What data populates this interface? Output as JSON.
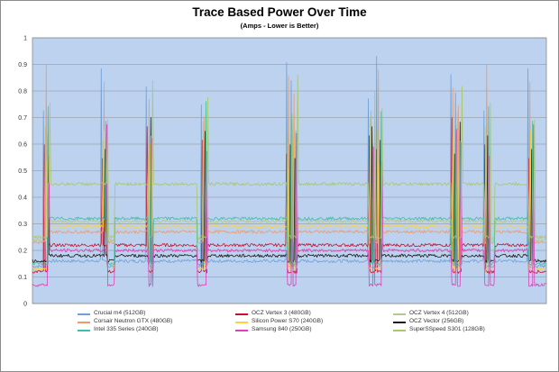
{
  "chart_data": {
    "type": "line",
    "title": "Trace Based Power Over Time",
    "subtitle": "(Amps - Lower is Better)",
    "xlabel": "",
    "ylabel": "",
    "ylim": [
      0,
      1
    ],
    "yticks": [
      "0",
      "0.1",
      "0.2",
      "0.3",
      "0.4",
      "0.5",
      "0.6",
      "0.7",
      "0.8",
      "0.9",
      "1"
    ],
    "grid": true,
    "legend_position": "bottom",
    "plot_background": "#bcd2ee",
    "series": [
      {
        "name": "Crucial m4 (512GB)",
        "color": "#6fa0d8",
        "baseline": 0.14,
        "plateau": 0.16,
        "spike": 0.93
      },
      {
        "name": "OCZ Vertex 3 (480GB)",
        "color": "#c8102e",
        "baseline": 0.12,
        "plateau": 0.22,
        "spike": 0.7
      },
      {
        "name": "OCZ Vertex 4 (512GB)",
        "color": "#b5c98a",
        "baseline": 0.24,
        "plateau": 0.31,
        "spike": 0.72
      },
      {
        "name": "Corsair Neutron GTX (480GB)",
        "color": "#f09a6a",
        "baseline": 0.23,
        "plateau": 0.27,
        "spike": 0.9
      },
      {
        "name": "Silicon Power S70 (240GB)",
        "color": "#ffd23c",
        "baseline": 0.13,
        "plateau": 0.29,
        "spike": 0.65
      },
      {
        "name": "OCZ Vector (256GB)",
        "color": "#1a1a1a",
        "baseline": 0.16,
        "plateau": 0.18,
        "spike": 0.7
      },
      {
        "name": "Intel 335 Series (240GB)",
        "color": "#3dbfa5",
        "baseline": 0.15,
        "plateau": 0.32,
        "spike": 0.76
      },
      {
        "name": "Samsung 840 (250GB)",
        "color": "#e040b8",
        "baseline": 0.07,
        "plateau": 0.2,
        "spike": 0.69
      },
      {
        "name": "SuperSSpeed S301 (128GB)",
        "color": "#a8c86c",
        "baseline": 0.25,
        "plateau": 0.45,
        "spike": 0.86
      }
    ]
  }
}
